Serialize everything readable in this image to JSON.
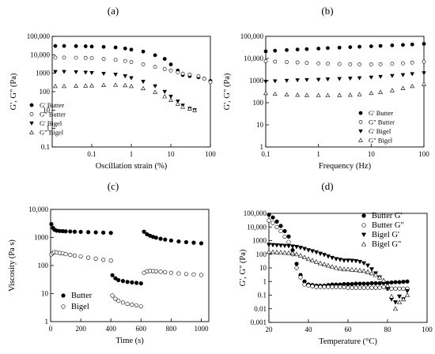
{
  "chart_data": [
    {
      "id": "a",
      "panel_label": "(a)",
      "type": "scatter",
      "xlabel": "Oscillation strain (%)",
      "ylabel": "G', G\" (Pa)",
      "xscale": "log",
      "yscale": "log",
      "xlim": [
        0.01,
        100
      ],
      "ylim": [
        0.1,
        100000
      ],
      "xticks": [
        0.1,
        1,
        10,
        100
      ],
      "xtick_labels": [
        "0.1",
        "1",
        "10",
        "100"
      ],
      "yticks": [
        0.1,
        1,
        10,
        100,
        1000,
        10000,
        100000
      ],
      "ytick_labels": [
        "0.1",
        "1",
        "10",
        "100",
        "1000",
        "10,000",
        "100,000"
      ],
      "legend_position": "bottom-left",
      "series": [
        {
          "name": "G' Butter",
          "marker": "filled-circle",
          "x": [
            0.012,
            0.02,
            0.04,
            0.07,
            0.1,
            0.2,
            0.4,
            0.7,
            1,
            2,
            4,
            7,
            10,
            15,
            20,
            30,
            50,
            70,
            100
          ],
          "y": [
            30000,
            30000,
            29500,
            29000,
            28000,
            27000,
            25000,
            22000,
            19000,
            15000,
            9500,
            6000,
            3000,
            1400,
            800,
            700,
            600,
            500,
            380
          ]
        },
        {
          "name": "G\" Butter",
          "marker": "open-circle",
          "x": [
            0.012,
            0.02,
            0.04,
            0.07,
            0.1,
            0.2,
            0.4,
            0.7,
            1,
            2,
            4,
            7,
            10,
            15,
            20,
            30,
            50,
            70,
            100
          ],
          "y": [
            7000,
            7000,
            6900,
            6800,
            6500,
            6000,
            5300,
            4600,
            4000,
            3000,
            2200,
            1700,
            1400,
            1100,
            950,
            850,
            700,
            500,
            330
          ]
        },
        {
          "name": "G' Bigel",
          "marker": "filled-triangle-down",
          "x": [
            0.012,
            0.02,
            0.04,
            0.07,
            0.1,
            0.2,
            0.4,
            0.7,
            1,
            2,
            4,
            7,
            10,
            15,
            20,
            30,
            40
          ],
          "y": [
            1200,
            1200,
            1150,
            1100,
            1050,
            950,
            850,
            700,
            550,
            350,
            200,
            100,
            55,
            30,
            18,
            12,
            10
          ]
        },
        {
          "name": "G\" Bigel",
          "marker": "open-triangle-up",
          "x": [
            0.012,
            0.02,
            0.04,
            0.07,
            0.1,
            0.2,
            0.4,
            0.7,
            1,
            2,
            4,
            7,
            10,
            15,
            20,
            30,
            40
          ],
          "y": [
            200,
            200,
            205,
            210,
            215,
            225,
            230,
            220,
            200,
            150,
            95,
            55,
            35,
            22,
            15,
            12,
            10
          ]
        }
      ]
    },
    {
      "id": "b",
      "panel_label": "(b)",
      "type": "scatter",
      "xlabel": "Frequency (Hz)",
      "ylabel": "G', G\" (Pa)",
      "xscale": "log",
      "yscale": "log",
      "xlim": [
        0.1,
        100
      ],
      "ylim": [
        1,
        100000
      ],
      "xticks": [
        0.1,
        1,
        10,
        100
      ],
      "xtick_labels": [
        "0.1",
        "1",
        "10",
        "100"
      ],
      "yticks": [
        1,
        10,
        100,
        1000,
        10000,
        100000
      ],
      "ytick_labels": [
        "1",
        "10",
        "100",
        "1000",
        "10,000",
        "100,000"
      ],
      "legend_position": "bottom-right",
      "series": [
        {
          "name": "G' Butter",
          "marker": "filled-circle",
          "x": [
            0.1,
            0.15,
            0.25,
            0.4,
            0.6,
            1,
            1.5,
            2.5,
            4,
            6,
            10,
            15,
            25,
            40,
            60,
            100
          ],
          "y": [
            21000,
            22500,
            24000,
            25500,
            26500,
            28000,
            29500,
            31000,
            32500,
            34000,
            35500,
            37000,
            39000,
            41000,
            43000,
            46000
          ]
        },
        {
          "name": "G\" Butter",
          "marker": "open-circle",
          "x": [
            0.1,
            0.15,
            0.25,
            0.4,
            0.6,
            1,
            1.5,
            2.5,
            4,
            6,
            10,
            15,
            25,
            40,
            60,
            100
          ],
          "y": [
            7500,
            7200,
            6900,
            6600,
            6300,
            6000,
            5800,
            5600,
            5500,
            5400,
            5400,
            5500,
            5700,
            6000,
            6500,
            7200
          ]
        },
        {
          "name": "G' Bigel",
          "marker": "filled-triangle-down",
          "x": [
            0.1,
            0.15,
            0.25,
            0.4,
            0.6,
            1,
            1.5,
            2.5,
            4,
            6,
            10,
            15,
            25,
            40,
            60,
            100
          ],
          "y": [
            900,
            950,
            1000,
            1050,
            1080,
            1100,
            1150,
            1200,
            1250,
            1300,
            1400,
            1500,
            1650,
            1800,
            2000,
            2200
          ]
        },
        {
          "name": "G\" Bigel",
          "marker": "open-triangle-up",
          "x": [
            0.1,
            0.15,
            0.25,
            0.4,
            0.6,
            1,
            1.5,
            2.5,
            4,
            6,
            10,
            15,
            25,
            40,
            60,
            100
          ],
          "y": [
            270,
            250,
            235,
            225,
            220,
            215,
            215,
            220,
            225,
            240,
            270,
            300,
            360,
            450,
            560,
            700
          ]
        }
      ]
    },
    {
      "id": "c",
      "panel_label": "(c)",
      "type": "scatter",
      "xlabel": "Time (s)",
      "ylabel": "Viscosity (Pa s)",
      "xscale": "linear",
      "yscale": "log",
      "xlim": [
        0,
        1050
      ],
      "ylim": [
        1,
        10000
      ],
      "xticks": [
        0,
        200,
        400,
        600,
        800,
        1000
      ],
      "xtick_labels": [
        "0",
        "200",
        "400",
        "600",
        "800",
        "1000"
      ],
      "yticks": [
        1,
        10,
        100,
        1000,
        10000
      ],
      "ytick_labels": [
        "1",
        "10",
        "100",
        "1000",
        "10,000"
      ],
      "legend_position": "bottom-left",
      "series": [
        {
          "name": "Butter",
          "marker": "filled-circle",
          "x": [
            5,
            15,
            25,
            40,
            60,
            80,
            100,
            130,
            160,
            200,
            250,
            300,
            350,
            400,
            410,
            430,
            450,
            480,
            510,
            540,
            570,
            600,
            620,
            640,
            660,
            680,
            700,
            730,
            760,
            800,
            850,
            900,
            950,
            1000
          ],
          "y": [
            3000,
            2200,
            1900,
            1750,
            1700,
            1680,
            1650,
            1630,
            1600,
            1580,
            1550,
            1520,
            1490,
            1450,
            45,
            35,
            30,
            28,
            26,
            25,
            24,
            23,
            1600,
            1300,
            1150,
            1050,
            980,
            900,
            840,
            780,
            720,
            680,
            650,
            620
          ]
        },
        {
          "name": "Bigel",
          "marker": "open-circle",
          "x": [
            5,
            15,
            25,
            40,
            60,
            80,
            100,
            130,
            160,
            200,
            250,
            300,
            350,
            400,
            410,
            430,
            450,
            480,
            510,
            540,
            570,
            600,
            620,
            640,
            660,
            680,
            700,
            730,
            760,
            800,
            850,
            900,
            950,
            1000
          ],
          "y": [
            250,
            280,
            300,
            290,
            280,
            270,
            255,
            240,
            225,
            210,
            190,
            175,
            160,
            150,
            8.5,
            6.5,
            5.5,
            4.8,
            4.3,
            4,
            3.8,
            3.5,
            55,
            62,
            64,
            63,
            62,
            60,
            58,
            55,
            52,
            50,
            48,
            46
          ]
        }
      ]
    },
    {
      "id": "d",
      "panel_label": "(d)",
      "type": "scatter",
      "xlabel": "Temperature (°C)",
      "ylabel": "G', G\" (Pa)",
      "xscale": "linear",
      "yscale": "log",
      "xlim": [
        20,
        100
      ],
      "ylim": [
        0.001,
        100000
      ],
      "xticks": [
        20,
        40,
        60,
        80,
        100
      ],
      "xtick_labels": [
        "20",
        "40",
        "60",
        "80",
        "100"
      ],
      "yticks": [
        0.001,
        0.01,
        0.1,
        1,
        10,
        100,
        1000,
        10000,
        100000
      ],
      "ytick_labels": [
        "0.001",
        "0.01",
        "0.1",
        "1",
        "10",
        "100",
        "1000",
        "10,000",
        "100,000"
      ],
      "legend_position": "top-right",
      "series": [
        {
          "name": "Butter G'",
          "marker": "filled-circle",
          "x": [
            20,
            22,
            24,
            26,
            28,
            30,
            32,
            34,
            36,
            38,
            40,
            42,
            44,
            46,
            48,
            50,
            52,
            54,
            56,
            58,
            60,
            62,
            64,
            66,
            68,
            70,
            72,
            74,
            76,
            78,
            80,
            82,
            84,
            86,
            88,
            90
          ],
          "y": [
            80000,
            50000,
            25000,
            12000,
            5000,
            2000,
            200,
            20,
            3,
            1,
            0.6,
            0.55,
            0.5,
            0.5,
            0.5,
            0.55,
            0.6,
            0.6,
            0.6,
            0.65,
            0.65,
            0.65,
            0.7,
            0.7,
            0.7,
            0.7,
            0.75,
            0.75,
            0.75,
            0.8,
            0.8,
            0.85,
            0.9,
            0.9,
            0.95,
            1
          ]
        },
        {
          "name": "Butter G\"",
          "marker": "open-circle",
          "x": [
            20,
            22,
            24,
            26,
            28,
            30,
            32,
            34,
            36,
            38,
            40,
            42,
            44,
            46,
            48,
            50,
            52,
            54,
            56,
            58,
            60,
            62,
            64,
            66,
            68,
            70,
            72,
            74,
            76,
            78,
            80,
            82,
            84,
            86,
            88,
            90
          ],
          "y": [
            30000,
            20000,
            10000,
            5000,
            2000,
            800,
            100,
            10,
            2,
            0.6,
            0.5,
            0.45,
            0.4,
            0.4,
            0.4,
            0.4,
            0.4,
            0.4,
            0.4,
            0.38,
            0.35,
            0.35,
            0.35,
            0.35,
            0.35,
            0.35,
            0.35,
            0.35,
            0.35,
            0.4,
            0.3,
            0.3,
            0.3,
            0.3,
            0.3,
            0.3
          ]
        },
        {
          "name": "Bigel G'",
          "marker": "filled-triangle-down",
          "x": [
            20,
            22,
            24,
            26,
            28,
            30,
            32,
            34,
            36,
            38,
            40,
            42,
            44,
            46,
            48,
            50,
            52,
            54,
            56,
            58,
            60,
            62,
            64,
            66,
            68,
            70,
            72,
            74,
            76,
            78,
            80,
            82,
            84,
            86,
            88,
            90
          ],
          "y": [
            500,
            480,
            460,
            440,
            420,
            400,
            380,
            350,
            300,
            250,
            200,
            170,
            140,
            110,
            90,
            70,
            55,
            45,
            40,
            35,
            35,
            34,
            32,
            28,
            22,
            15,
            8,
            4,
            2,
            0.8,
            0.3,
            0.05,
            0.03,
            0.08,
            0.05,
            0.2
          ]
        },
        {
          "name": "Bigel G\"",
          "marker": "open-triangle-up",
          "x": [
            20,
            22,
            24,
            26,
            28,
            30,
            32,
            34,
            36,
            38,
            40,
            42,
            44,
            46,
            48,
            50,
            52,
            54,
            56,
            58,
            60,
            62,
            64,
            66,
            68,
            70,
            72,
            74,
            76,
            78,
            80,
            82,
            84,
            86,
            88,
            90
          ],
          "y": [
            150,
            145,
            140,
            135,
            130,
            125,
            120,
            100,
            80,
            60,
            45,
            35,
            28,
            22,
            18,
            15,
            12,
            10,
            9,
            8,
            8,
            7.5,
            7,
            6.5,
            6,
            5,
            4,
            3,
            2,
            1.2,
            0.5,
            0.08,
            0.01,
            0.03,
            0.05,
            0.1
          ]
        }
      ]
    }
  ]
}
